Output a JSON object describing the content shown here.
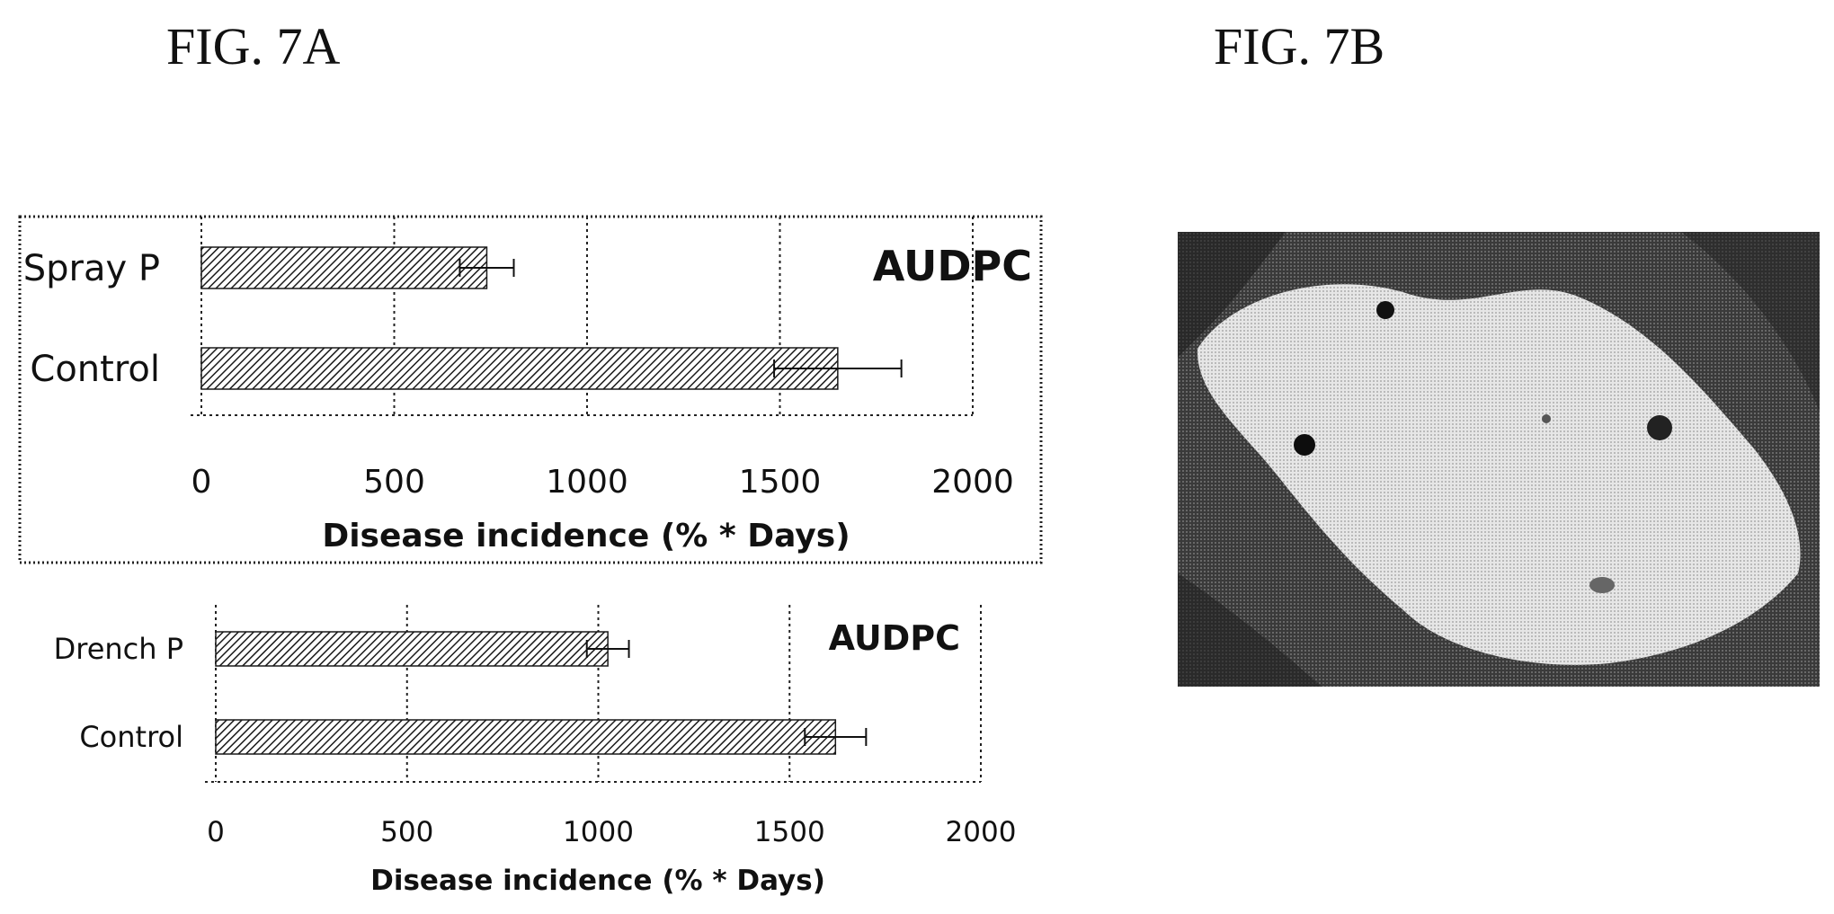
{
  "figures": {
    "fig_a_label": "FIG. 7A",
    "fig_b_label": "FIG. 7B"
  },
  "chart_data": [
    {
      "type": "bar",
      "orientation": "horizontal",
      "title": "AUDPC",
      "categories": [
        "Spray P",
        "Control"
      ],
      "values": [
        740,
        1650
      ],
      "errors": [
        70,
        165
      ],
      "xlabel": "Disease incidence (% * Days)",
      "ylabel": "",
      "xlim": [
        0,
        2000
      ],
      "xticks": [
        "0",
        "500",
        "1000",
        "1500",
        "2000"
      ],
      "grid": true,
      "frame": "dotted border",
      "bar_fill": "diagonal hatch"
    },
    {
      "type": "bar",
      "orientation": "horizontal",
      "title": "AUDPC",
      "categories": [
        "Drench P",
        "Control"
      ],
      "values": [
        1025,
        1620
      ],
      "errors": [
        55,
        80
      ],
      "xlabel": "Disease incidence (% * Days)",
      "ylabel": "",
      "xlim": [
        0,
        2000
      ],
      "xticks": [
        "0",
        "500",
        "1000",
        "1500",
        "2000"
      ],
      "grid": true,
      "bar_fill": "diagonal hatch"
    }
  ],
  "photo": {
    "description_icon": "leaf-lesion-photo-icon",
    "style": "grayscale halftone"
  },
  "colors": {
    "ink": "#111111",
    "hatch_bg": "#ffffff",
    "photo_dark": "#2b2b2b",
    "photo_leaf": "#d9d9d9"
  }
}
